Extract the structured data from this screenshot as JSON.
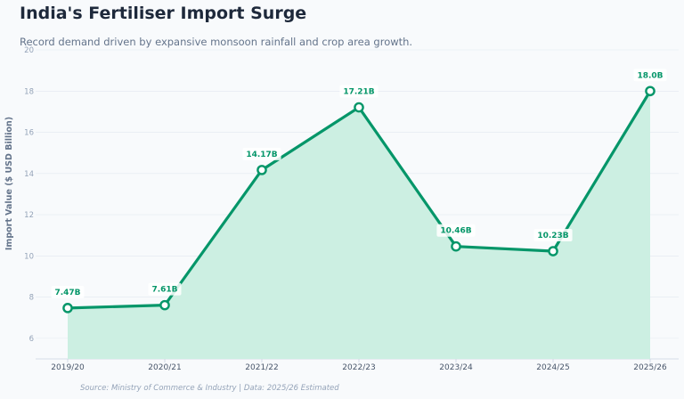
{
  "header": {
    "title": "India's Fertiliser Import Surge",
    "subtitle": "Record demand driven by expansive monsoon rainfall and crop area growth."
  },
  "footer": {
    "source": "Source: Ministry of Commerce & Industry | Data: 2025/26 Estimated"
  },
  "colors": {
    "line": "#059669",
    "area": "#ccefe2",
    "point_fill": "#ffffff",
    "label": "#059669",
    "grid": "#e2e8f0"
  },
  "chart_data": {
    "type": "area",
    "title": "India's Fertiliser Import Surge",
    "xlabel": "",
    "ylabel": "Import Value ($ USD Billion)",
    "ylim": [
      5,
      20
    ],
    "yticks": [
      6,
      8,
      10,
      12,
      14,
      16,
      18,
      20
    ],
    "grid": true,
    "categories": [
      "2019/20",
      "2020/21",
      "2021/22",
      "2022/23",
      "2023/24",
      "2024/25",
      "2025/26"
    ],
    "series": [
      {
        "name": "Import Value",
        "values": [
          7.47,
          7.61,
          14.17,
          17.21,
          10.46,
          10.23,
          18.0
        ],
        "labels": [
          "7.47B",
          "7.61B",
          "14.17B",
          "17.21B",
          "10.46B",
          "10.23B",
          "18.0B"
        ]
      }
    ]
  }
}
